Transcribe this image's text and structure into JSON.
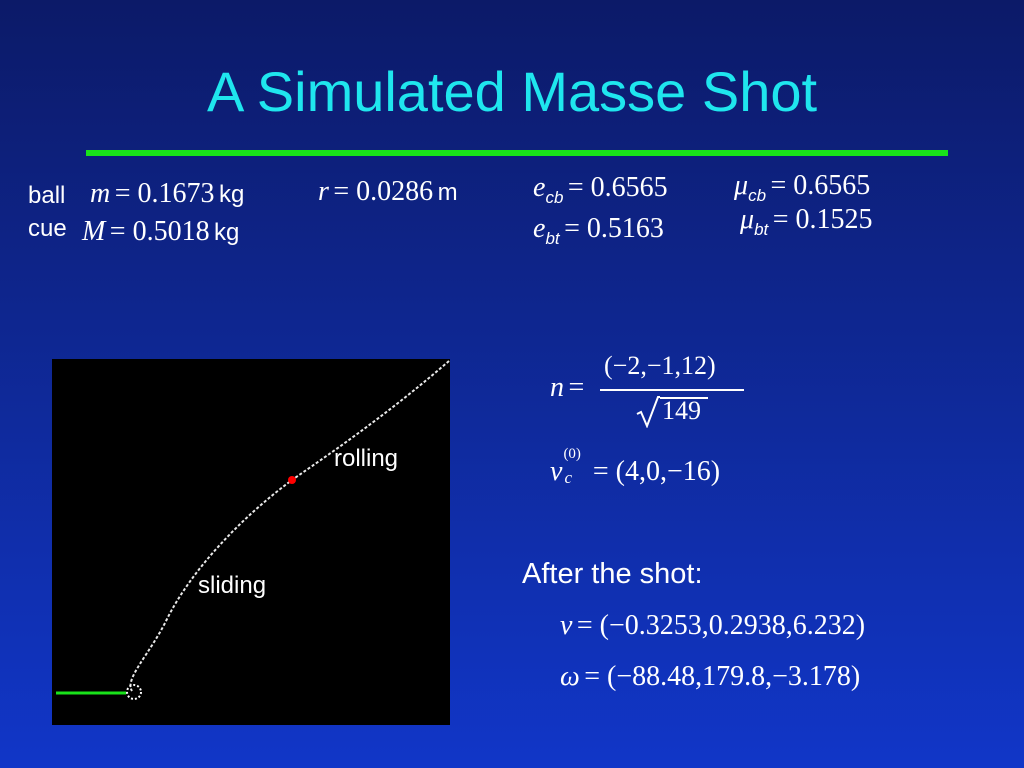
{
  "slide": {
    "title": "A Simulated Masse Shot",
    "accent_title_color": "#1fe6ee",
    "rule_color": "#19e21a"
  },
  "params": {
    "ball_label": "ball",
    "cue_label": "cue",
    "m_sym": "m",
    "m_val": "= 0.1673",
    "M_sym": "M",
    "M_val": "= 0.5018",
    "kg": "kg",
    "r_sym": "r",
    "r_val": "= 0.0286",
    "m_unit": "m",
    "e_sym": "e",
    "cb": "cb",
    "bt": "bt",
    "ecb_val": "= 0.6565",
    "ebt_val": "= 0.5163",
    "mu_sym": "μ",
    "mucb_val": "= 0.6565",
    "mubt_val": "= 0.1525"
  },
  "equations": {
    "n_sym": "n",
    "eq": "=",
    "n_num": "(−2,−1,12)",
    "n_den": "149",
    "v_sym": "v",
    "vc_sub": "c",
    "vc_sup": "(0)",
    "vc_val": "= (4,0,−16)",
    "after_label": "After the shot:",
    "v_after": "= (−0.3253,0.2938,6.232)",
    "omega_sym": "ω",
    "omega_after": "= (−88.48,179.8,−3.178)"
  },
  "simulation": {
    "label_rolling": "rolling",
    "label_sliding": "sliding",
    "path_color": "#e8e8e8",
    "transition_dot_color": "#ff0000",
    "cue_line_color": "#19e21a"
  }
}
